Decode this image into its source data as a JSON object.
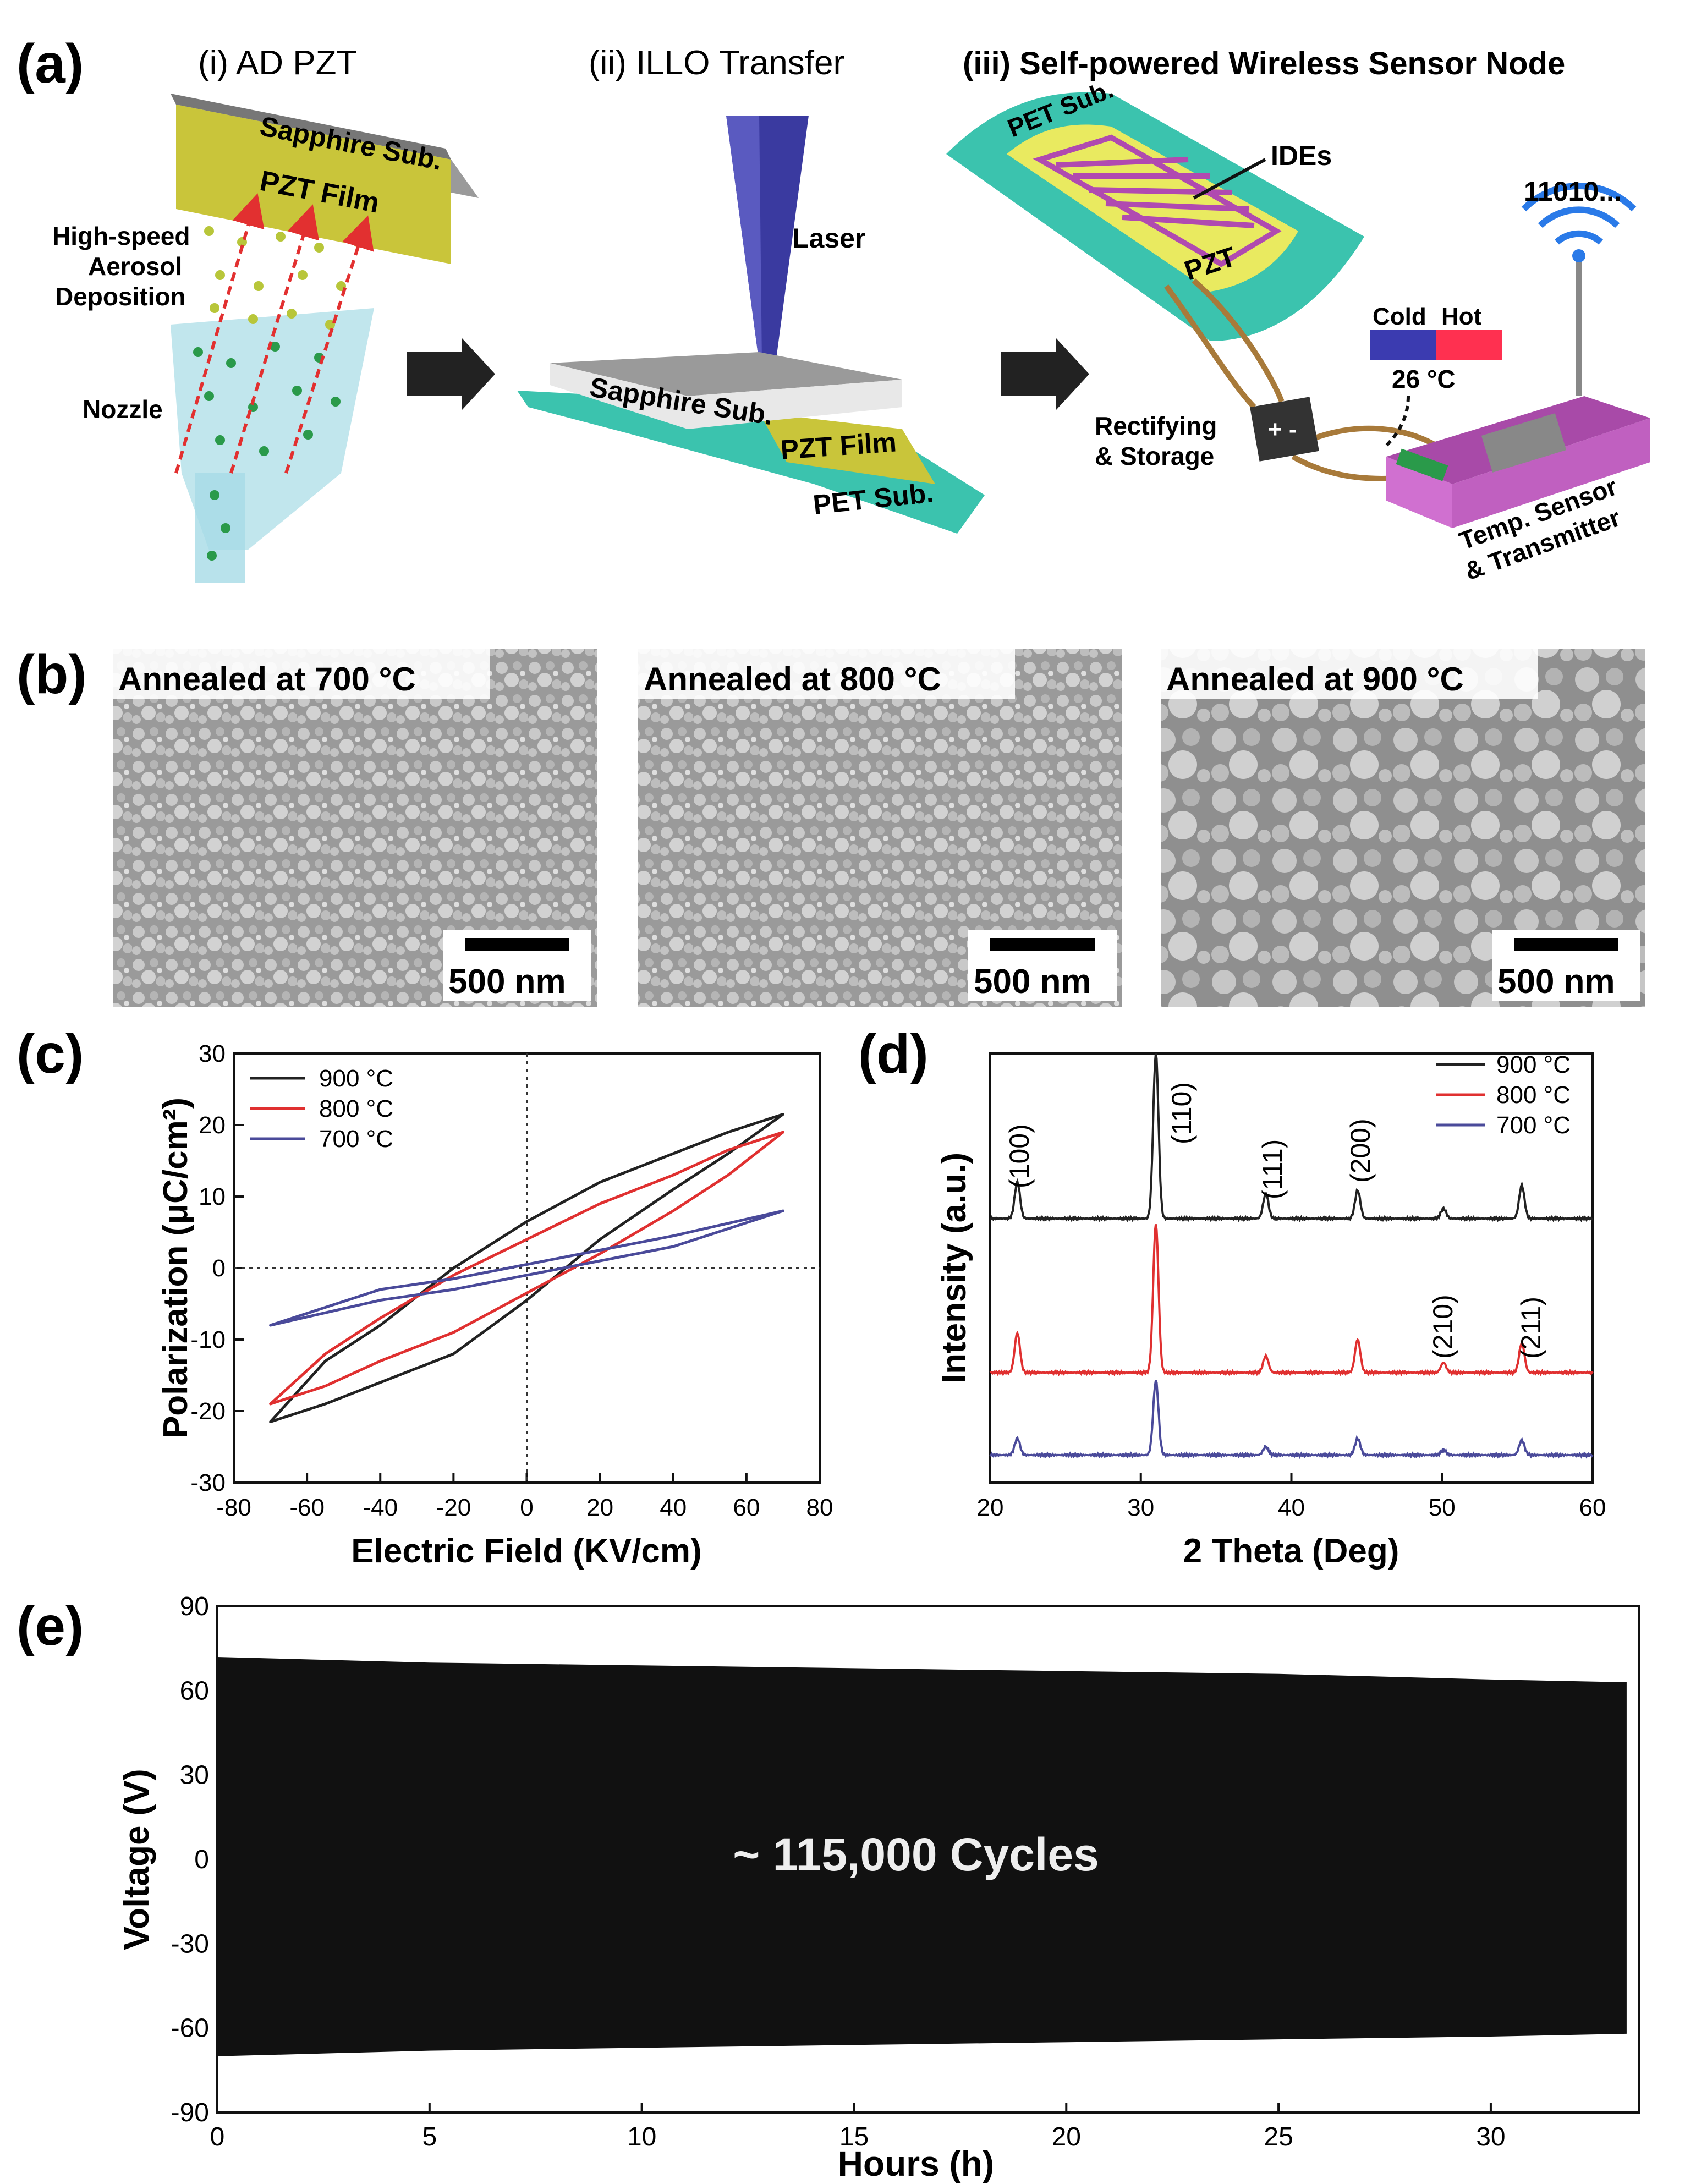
{
  "panel_a": {
    "label": "(a)",
    "step1_title": "(i) AD PZT",
    "step2_title": "(ii) ILLO Transfer",
    "step3_title": "(iii) Self-powered Wireless Sensor Node",
    "sapphire_sub_1": "Sapphire Sub.",
    "pzt_film_1": "PZT Film",
    "hs_line1": "High-speed",
    "hs_line2": "Aerosol",
    "hs_line3": "Deposition",
    "nozzle": "Nozzle",
    "laser": "Laser",
    "sapphire_sub_2": "Sapphire Sub.",
    "pzt_film_2": "PZT Film",
    "pet_sub_2": "PET Sub.",
    "pet_sub_3": "PET Sub.",
    "ides": "IDEs",
    "pzt_3": "PZT",
    "binary": "11010...",
    "cold": "Cold",
    "hot": "Hot",
    "temp": "26 °C",
    "rect_line1": "Rectifying",
    "rect_line2": "& Storage",
    "ts_line1": "Temp. Sensor",
    "ts_line2": "& Transmitter",
    "colors": {
      "pzt": "#c9c53a",
      "pet": "#3bc3ae",
      "laser": "#3a3aa0",
      "cold": "#3b3bb0",
      "hot": "#ff3050",
      "sensor": "#b04ab0"
    }
  },
  "panel_b": {
    "label": "(b)",
    "images": [
      {
        "caption": "Annealed at 700 °C",
        "scale": "500 nm"
      },
      {
        "caption": "Annealed at 800 °C",
        "scale": "500 nm"
      },
      {
        "caption": "Annealed at 900 °C",
        "scale": "500 nm"
      }
    ]
  },
  "panel_c": {
    "label": "(c)",
    "xlabel": "Electric Field (KV/cm)",
    "ylabel": "Polarization (μC/cm²)",
    "xticks": [
      "-80",
      "-60",
      "-40",
      "-20",
      "0",
      "20",
      "40",
      "60",
      "80"
    ],
    "yticks": [
      "30",
      "20",
      "10",
      "0",
      "-10",
      "-20",
      "-30"
    ],
    "legend": [
      "900 °C",
      "800 °C",
      "700 °C"
    ]
  },
  "panel_d": {
    "label": "(d)",
    "xlabel": "2 Theta (Deg)",
    "ylabel": "Intensity (a.u.)",
    "xticks": [
      "20",
      "30",
      "40",
      "50",
      "60"
    ],
    "peaks": [
      "(100)",
      "(110)",
      "(111)",
      "(200)",
      "(210)",
      "(211)"
    ],
    "legend": [
      "900 °C",
      "800 °C",
      "700 °C"
    ]
  },
  "panel_e": {
    "label": "(e)",
    "xlabel": "Hours (h)",
    "ylabel": "Voltage (V)",
    "xticks": [
      "0",
      "5",
      "10",
      "15",
      "20",
      "25",
      "30"
    ],
    "yticks": [
      "90",
      "60",
      "30",
      "0",
      "-30",
      "-60",
      "-90"
    ],
    "annotation": "~ 115,000 Cycles"
  },
  "chart_data": [
    {
      "type": "line",
      "xlabel": "Electric Field (KV/cm)",
      "ylabel": "Polarization (μC/cm²)",
      "xlim": [
        -80,
        80
      ],
      "ylim": [
        -30,
        30
      ],
      "series": [
        {
          "name": "900 °C",
          "color": "#222222",
          "x": [
            70,
            55,
            40,
            20,
            0,
            -20,
            -40,
            -55,
            -70,
            -55,
            -40,
            -20,
            0,
            20,
            40,
            55,
            70
          ],
          "y": [
            21.5,
            19,
            16,
            12,
            6.5,
            0,
            -8,
            -13,
            -21.5,
            -19,
            -16,
            -12,
            -4.5,
            4,
            11,
            16,
            21.5
          ]
        },
        {
          "name": "800 °C",
          "color": "#e03030",
          "x": [
            70,
            55,
            40,
            20,
            0,
            -20,
            -40,
            -55,
            -70,
            -55,
            -40,
            -20,
            0,
            20,
            40,
            55,
            70
          ],
          "y": [
            19,
            16.5,
            13,
            9,
            4,
            -1,
            -7,
            -12,
            -19,
            -16.5,
            -13,
            -9,
            -3.5,
            2,
            8,
            13,
            19
          ]
        },
        {
          "name": "700 °C",
          "color": "#4a4a9a",
          "x": [
            70,
            40,
            20,
            0,
            -20,
            -40,
            -70,
            -40,
            -20,
            0,
            20,
            40,
            70
          ],
          "y": [
            8,
            4.5,
            2.5,
            0.5,
            -1.5,
            -3,
            -8,
            -4.5,
            -3,
            -1,
            1,
            3,
            8
          ]
        }
      ]
    },
    {
      "type": "line",
      "xlabel": "2 Theta (Deg)",
      "ylabel": "Intensity (a.u.)",
      "xlim": [
        20,
        60
      ],
      "series": [
        {
          "name": "900 °C",
          "color": "#222222",
          "peaks": [
            [
              21.8,
              0.22
            ],
            [
              31.0,
              1.0
            ],
            [
              38.3,
              0.15
            ],
            [
              44.4,
              0.17
            ],
            [
              50.1,
              0.06
            ],
            [
              55.3,
              0.2
            ]
          ]
        },
        {
          "name": "800 °C",
          "color": "#e03030",
          "peaks": [
            [
              21.8,
              0.24
            ],
            [
              31.0,
              0.9
            ],
            [
              38.3,
              0.1
            ],
            [
              44.4,
              0.2
            ],
            [
              50.1,
              0.06
            ],
            [
              55.3,
              0.18
            ]
          ]
        },
        {
          "name": "700 °C",
          "color": "#4a4a9a",
          "peaks": [
            [
              21.8,
              0.1
            ],
            [
              31.0,
              0.45
            ],
            [
              38.3,
              0.05
            ],
            [
              44.4,
              0.1
            ],
            [
              50.1,
              0.03
            ],
            [
              55.3,
              0.09
            ]
          ]
        }
      ]
    },
    {
      "type": "area",
      "xlabel": "Hours (h)",
      "ylabel": "Voltage (V)",
      "xlim": [
        0,
        33.5
      ],
      "ylim": [
        -90,
        90
      ],
      "envelope": {
        "x": [
          0,
          5,
          10,
          15,
          20,
          25,
          30,
          33.2
        ],
        "upper": [
          72,
          70,
          69,
          68,
          67,
          66,
          64,
          63
        ],
        "lower": [
          -70,
          -68,
          -67,
          -66,
          -65,
          -64,
          -63,
          -62
        ]
      }
    }
  ]
}
